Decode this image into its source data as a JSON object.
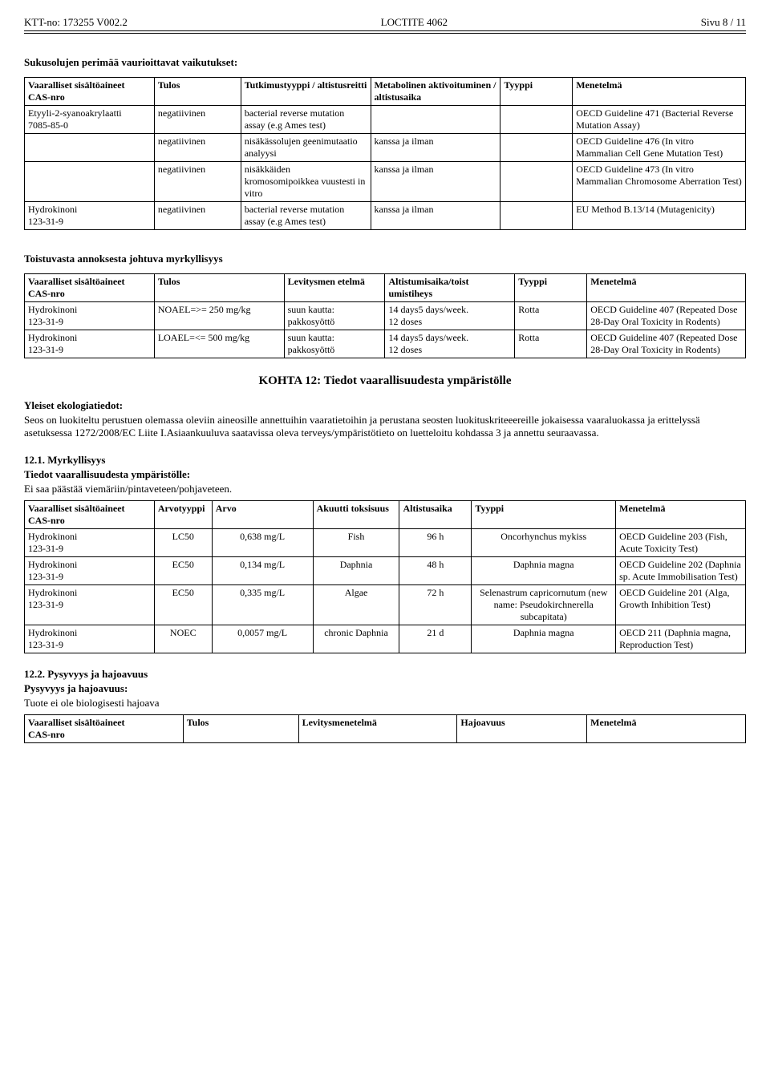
{
  "header": {
    "left": "KTT-no: 173255   V002.2",
    "center": "LOCTITE 4062",
    "right": "Sivu 8 / 11"
  },
  "germ": {
    "title": "Sukusolujen perimää vaurioittavat vaikutukset:",
    "cols": [
      "Vaaralliset sisältöaineet\nCAS-nro",
      "Tulos",
      "Tutkimustyyppi / altistusreitti",
      "Metabolinen aktivoituminen / altistusaika",
      "Tyyppi",
      "Menetelmä"
    ],
    "rows": [
      [
        "Etyyli-2-syanoakrylaatti\n7085-85-0",
        "negatiivinen",
        "bacterial reverse mutation assay (e.g Ames test)",
        "",
        "",
        "OECD Guideline 471 (Bacterial Reverse Mutation Assay)"
      ],
      [
        "",
        "negatiivinen",
        "nisäkässolujen geenimutaatio analyysi",
        "kanssa ja ilman",
        "",
        "OECD Guideline 476 (In vitro Mammalian Cell Gene Mutation Test)"
      ],
      [
        "",
        "negatiivinen",
        "nisäkkäiden kromosomipoikkea vuustesti in vitro",
        "kanssa ja ilman",
        "",
        "OECD Guideline 473 (In vitro Mammalian Chromosome Aberration Test)"
      ],
      [
        "Hydrokinoni\n123-31-9",
        "negatiivinen",
        "bacterial reverse mutation assay (e.g Ames test)",
        "kanssa ja ilman",
        "",
        "EU Method B.13/14 (Mutagenicity)"
      ]
    ]
  },
  "repeated": {
    "title": "Toistuvasta annoksesta johtuva myrkyllisyys",
    "cols": [
      "Vaaralliset sisältöaineet\nCAS-nro",
      "Tulos",
      "Levitysmen etelmä",
      "Altistumisaika/toist umistiheys",
      "Tyyppi",
      "Menetelmä"
    ],
    "rows": [
      [
        "Hydrokinoni\n123-31-9",
        "NOAEL=>= 250 mg/kg",
        "suun kautta: pakkosyöttö",
        "14 days5 days/week.\n12 doses",
        "Rotta",
        "OECD Guideline 407 (Repeated Dose 28-Day Oral Toxicity in Rodents)"
      ],
      [
        "Hydrokinoni\n123-31-9",
        "LOAEL=<= 500 mg/kg",
        "suun kautta: pakkosyöttö",
        "14 days5 days/week.\n12 doses",
        "Rotta",
        "OECD Guideline 407 (Repeated Dose 28-Day Oral Toxicity in Rodents)"
      ]
    ]
  },
  "section12": {
    "title": "KOHTA 12: Tiedot vaarallisuudesta ympäristölle",
    "eco_label": "Yleiset ekologiatiedot:",
    "eco_text": "Seos on luokiteltu perustuen olemassa oleviin aineosille annettuihin vaaratietoihin ja perustana seosten luokituskriteeereille jokaisessa vaaraluokassa ja erittelyssä asetuksessa 1272/2008/EC Liite I.Asiaankuuluva saatavissa oleva terveys/ympäristötieto on luetteloitu kohdassa 3 ja annettu seuraavassa."
  },
  "tox": {
    "heading": "12.1. Myrkyllisyys",
    "label": "Tiedot vaarallisuudesta ympäristölle:",
    "text": "Ei saa päästää viemäriin/pintaveteen/pohjaveteen.",
    "cols": [
      "Vaaralliset sisältöaineet\nCAS-nro",
      "Arvotyyppi",
      "Arvo",
      "Akuutti toksisuus",
      "Altistusaika",
      "Tyyppi",
      "Menetelmä"
    ],
    "rows": [
      [
        "Hydrokinoni\n123-31-9",
        "LC50",
        "0,638 mg/L",
        "Fish",
        "96 h",
        "Oncorhynchus mykiss",
        "OECD Guideline 203 (Fish, Acute Toxicity Test)"
      ],
      [
        "Hydrokinoni\n123-31-9",
        "EC50",
        "0,134 mg/L",
        "Daphnia",
        "48 h",
        "Daphnia magna",
        "OECD Guideline 202 (Daphnia sp. Acute Immobilisation Test)"
      ],
      [
        "Hydrokinoni\n123-31-9",
        "EC50",
        "0,335 mg/L",
        "Algae",
        "72 h",
        "Selenastrum capricornutum (new name: Pseudokirchnerella subcapitata)",
        "OECD Guideline 201 (Alga, Growth Inhibition Test)"
      ],
      [
        "Hydrokinoni\n123-31-9",
        "NOEC",
        "0,0057 mg/L",
        "chronic Daphnia",
        "21 d",
        "Daphnia magna",
        "OECD 211 (Daphnia magna, Reproduction Test)"
      ]
    ]
  },
  "persist": {
    "heading": "12.2. Pysyvyys ja hajoavuus",
    "label": "Pysyvyys ja hajoavuus:",
    "text": "Tuote ei ole biologisesti hajoava",
    "cols": [
      "Vaaralliset sisältöaineet\nCAS-nro",
      "Tulos",
      "Levitysmenetelmä",
      "Hajoavuus",
      "Menetelmä"
    ]
  },
  "widths": {
    "germ": [
      "18%",
      "12%",
      "18%",
      "18%",
      "10%",
      "24%"
    ],
    "repeated": [
      "18%",
      "18%",
      "14%",
      "18%",
      "10%",
      "22%"
    ],
    "tox": [
      "18%",
      "8%",
      "14%",
      "12%",
      "10%",
      "20%",
      "18%"
    ],
    "persist": [
      "22%",
      "16%",
      "22%",
      "18%",
      "22%"
    ]
  }
}
